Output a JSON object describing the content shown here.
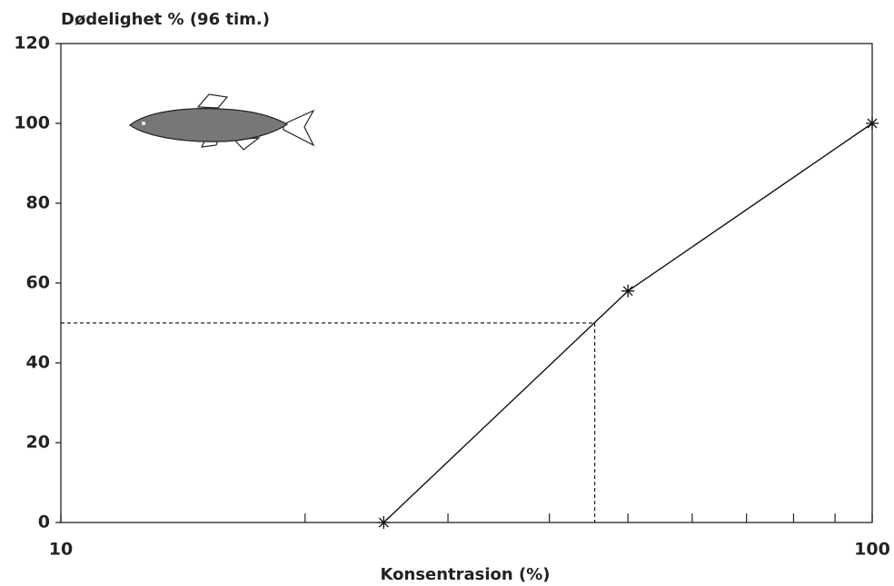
{
  "chart_data": {
    "type": "line",
    "ylabel": "Dødelighet % (96 tim.)",
    "xlabel": "Konsentrasion (%)",
    "x": [
      25,
      50,
      100
    ],
    "series": [
      {
        "color": "#111111",
        "values": [
          0,
          58,
          100
        ]
      }
    ],
    "xscale": "log",
    "xlim": [
      10,
      100
    ],
    "xticks": [
      10,
      100
    ],
    "xminor_ticks": [
      20,
      30,
      40,
      50,
      60,
      70,
      80,
      90
    ],
    "ylim": [
      0,
      120
    ],
    "yticks": [
      0,
      20,
      40,
      60,
      80,
      100,
      120
    ],
    "reference": {
      "x": 45.5,
      "y": 50
    },
    "grid": false
  }
}
